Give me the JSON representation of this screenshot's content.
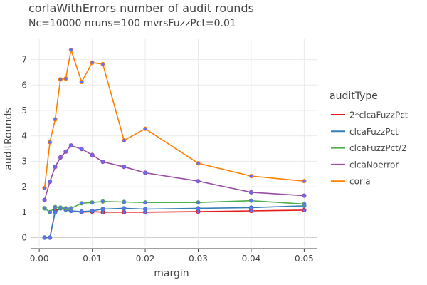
{
  "chart_data": {
    "type": "line",
    "title": "corlaWithErrors number of audit rounds",
    "subtitle": "Nc=10000 nruns=100 mvrsFuzzPct=0.01",
    "xlabel": "margin",
    "ylabel": "auditRounds",
    "xlim": [
      -0.0015,
      0.0525
    ],
    "ylim": [
      -0.35,
      7.8
    ],
    "xticks": [
      0,
      0.01,
      0.02,
      0.03,
      0.04,
      0.05
    ],
    "xtick_labels": [
      "0.00",
      "0.01",
      "0.02",
      "0.03",
      "0.04",
      "0.05"
    ],
    "yticks": [
      0,
      1,
      2,
      3,
      4,
      5,
      6,
      7
    ],
    "ytick_labels": [
      "0",
      "1",
      "2",
      "3",
      "4",
      "5",
      "6",
      "7"
    ],
    "grid": true,
    "legend_title": "auditType",
    "legend_position": "right",
    "marker_color": "#636efa",
    "x": [
      0.001,
      0.002,
      0.003,
      0.004,
      0.005,
      0.006,
      0.008,
      0.01,
      0.012,
      0.016,
      0.02,
      0.03,
      0.04,
      0.05
    ],
    "series": [
      {
        "name": "2*clcaFuzzPct",
        "color": "#e41a1c",
        "values": [
          0.0,
          0.0,
          1.05,
          1.15,
          1.1,
          1.05,
          1.0,
          1.02,
          1.0,
          1.0,
          1.0,
          1.02,
          1.05,
          1.08
        ]
      },
      {
        "name": "clcaFuzzPct",
        "color": "#377eb8",
        "values": [
          0.0,
          0.0,
          1.0,
          1.15,
          1.1,
          1.05,
          1.02,
          1.05,
          1.12,
          1.15,
          1.12,
          1.15,
          1.18,
          1.25
        ]
      },
      {
        "name": "clcaFuzzPct/2",
        "color": "#4daf4a",
        "values": [
          1.15,
          1.0,
          1.2,
          1.18,
          1.15,
          1.15,
          1.35,
          1.38,
          1.42,
          1.4,
          1.38,
          1.38,
          1.45,
          1.32
        ]
      },
      {
        "name": "clcaNoerror",
        "color": "#984ea3",
        "values": [
          1.48,
          2.2,
          2.78,
          3.15,
          3.38,
          3.62,
          3.48,
          3.25,
          2.98,
          2.78,
          2.55,
          2.22,
          1.78,
          1.65
        ]
      },
      {
        "name": "corla",
        "color": "#ff7f00",
        "values": [
          1.95,
          3.75,
          4.65,
          6.22,
          6.25,
          7.38,
          6.12,
          6.88,
          6.82,
          3.82,
          4.28,
          2.92,
          2.42,
          2.22
        ]
      }
    ]
  }
}
